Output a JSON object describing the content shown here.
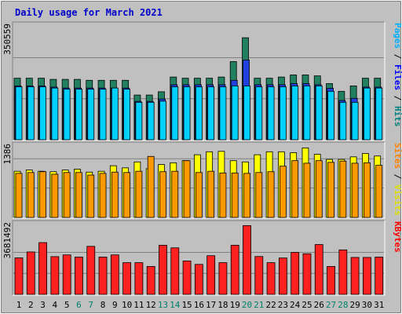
{
  "chart_data": {
    "type": "bar",
    "title": "Daily usage for March 2021",
    "categories": [
      "1",
      "2",
      "3",
      "4",
      "5",
      "6",
      "7",
      "8",
      "9",
      "10",
      "11",
      "12",
      "13",
      "14",
      "15",
      "16",
      "17",
      "18",
      "19",
      "20",
      "21",
      "22",
      "23",
      "24",
      "25",
      "26",
      "27",
      "28",
      "29",
      "30",
      "31"
    ],
    "weekend_days": [
      "6",
      "7",
      "13",
      "14",
      "20",
      "21",
      "27",
      "28"
    ],
    "panels": [
      {
        "name": "top",
        "y_tick_label": "350559",
        "y_tick_value": 350559,
        "ylim": [
          0,
          500000
        ],
        "right_legend": [
          {
            "text": "Hits",
            "color": "#008080"
          },
          {
            "text": "Files",
            "color": "#0000ff"
          },
          {
            "text": "Pages",
            "color": "#00b0ff"
          }
        ],
        "series": [
          {
            "name": "Hits",
            "color": "#208060",
            "values": [
              263000,
              263000,
              263000,
              258000,
              258000,
              258000,
              254000,
              254000,
              254000,
              254000,
              191000,
              191000,
              205000,
              268000,
              263000,
              263000,
              263000,
              268000,
              334000,
              436000,
              263000,
              263000,
              268000,
              277000,
              277000,
              273000,
              240000,
              207000,
              230000,
              263000,
              263000
            ]
          },
          {
            "name": "Files",
            "color": "#2040e0",
            "values": [
              230000,
              230000,
              230000,
              225000,
              221000,
              221000,
              221000,
              221000,
              221000,
              221000,
              164000,
              164000,
              174000,
              235000,
              235000,
              235000,
              235000,
              235000,
              254000,
              341000,
              235000,
              235000,
              235000,
              240000,
              240000,
              235000,
              220000,
              168000,
              177000,
              225000,
              225000
            ]
          },
          {
            "name": "Pages",
            "color": "#00d0ff",
            "values": [
              226000,
              226000,
              226000,
              221000,
              216000,
              216000,
              216000,
              216000,
              221000,
              216000,
              160000,
              160000,
              165000,
              226000,
              226000,
              226000,
              226000,
              226000,
              230000,
              230000,
              226000,
              226000,
              226000,
              230000,
              230000,
              230000,
              207000,
              160000,
              160000,
              221000,
              221000
            ]
          }
        ]
      },
      {
        "name": "middle",
        "y_tick_label": "1386",
        "y_tick_value": 1386,
        "ylim": [
          0,
          1760
        ],
        "right_legend": [
          {
            "text": "Visits",
            "color": "#e0e000"
          },
          {
            "text": "Sites",
            "color": "#ff8000"
          }
        ],
        "series": [
          {
            "name": "Visits",
            "color": "#ffff00",
            "values": [
              1090,
              1120,
              1090,
              1080,
              1120,
              1140,
              1070,
              1090,
              1220,
              1170,
              1310,
              1150,
              1250,
              1290,
              1340,
              1480,
              1550,
              1560,
              1340,
              1310,
              1480,
              1550,
              1550,
              1530,
              1640,
              1490,
              1370,
              1370,
              1430,
              1510,
              1450
            ]
          },
          {
            "name": "Sites",
            "color": "#ff9900",
            "values": [
              1040,
              1060,
              1080,
              1020,
              1060,
              1060,
              1000,
              1040,
              1070,
              1060,
              1090,
              1440,
              1080,
              1090,
              1340,
              1060,
              1090,
              1050,
              1050,
              1040,
              1060,
              1080,
              1210,
              1340,
              1280,
              1340,
              1300,
              1330,
              1280,
              1290,
              1230
            ]
          }
        ]
      },
      {
        "name": "bottom",
        "y_tick_label": "3681492",
        "y_tick_value": 3681492,
        "ylim": [
          0,
          6400000
        ],
        "right_legend": [
          {
            "text": "KBytes",
            "color": "#ff0000"
          }
        ],
        "series": [
          {
            "name": "KBytes",
            "color": "#ff2020",
            "values": [
              3200000,
              3720000,
              4540000,
              3310000,
              3460000,
              3270000,
              4210000,
              3270000,
              3460000,
              2780000,
              2780000,
              2450000,
              4310000,
              4080000,
              2930000,
              2630000,
              3390000,
              2780000,
              4310000,
              6030000,
              3320000,
              2780000,
              3190000,
              3680000,
              3560000,
              4370000,
              2450000,
              3900000,
              3240000,
              3240000,
              3270000
            ]
          }
        ]
      }
    ]
  }
}
